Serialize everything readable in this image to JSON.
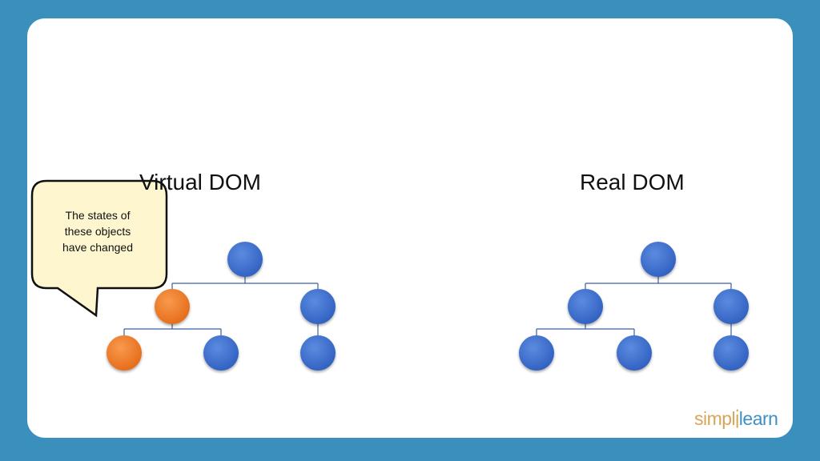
{
  "slide": {
    "virtual_title": "Virtual DOM",
    "real_title": "Real DOM",
    "callout_lines": [
      "The states of",
      "these objects",
      "have changed"
    ]
  },
  "colors": {
    "frame": "#3b8fbd",
    "node_unchanged": "#3f6fcc",
    "node_changed": "#ef7a28",
    "connector": "#3a5fa0",
    "callout_fill": "#fdf6cf"
  },
  "trees": {
    "virtual": {
      "nodes": [
        {
          "id": "root",
          "state": "unchanged"
        },
        {
          "id": "child-left",
          "state": "changed"
        },
        {
          "id": "child-right",
          "state": "unchanged"
        },
        {
          "id": "grandchild-left-a",
          "state": "changed"
        },
        {
          "id": "grandchild-left-b",
          "state": "unchanged"
        },
        {
          "id": "grandchild-right",
          "state": "unchanged"
        }
      ]
    },
    "real": {
      "nodes": [
        {
          "id": "root",
          "state": "unchanged"
        },
        {
          "id": "child-left",
          "state": "unchanged"
        },
        {
          "id": "child-right",
          "state": "unchanged"
        },
        {
          "id": "grandchild-left-a",
          "state": "unchanged"
        },
        {
          "id": "grandchild-left-b",
          "state": "unchanged"
        },
        {
          "id": "grandchild-right",
          "state": "unchanged"
        }
      ]
    }
  },
  "logo": {
    "part1": "simpl",
    "part2": "i",
    "part3": "learn"
  }
}
